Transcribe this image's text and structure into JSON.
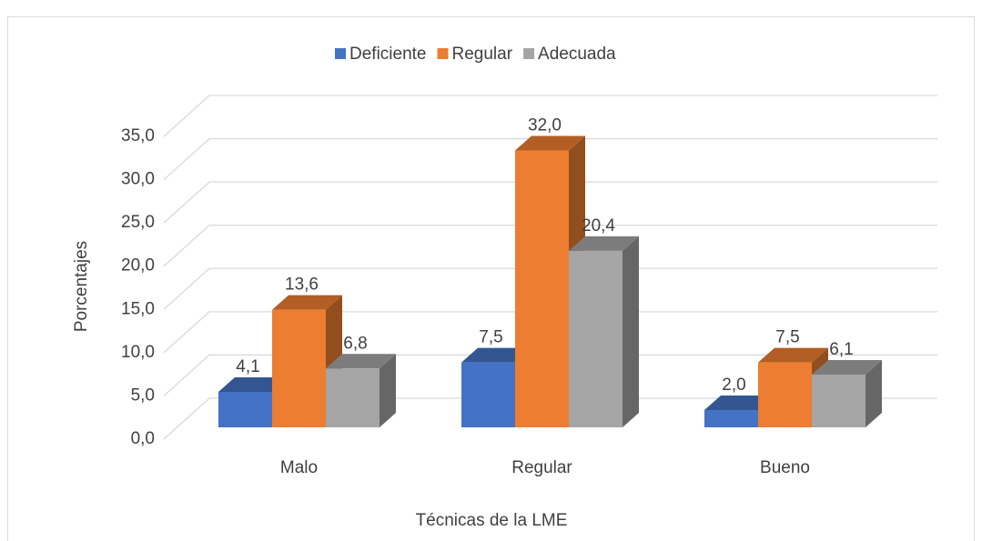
{
  "chart_data": {
    "type": "bar3d",
    "categories": [
      "Malo",
      "Regular",
      "Bueno"
    ],
    "series": [
      {
        "name": "Deficiente",
        "color": "#4472c4",
        "values": [
          4.1,
          7.5,
          2.0
        ],
        "value_labels": [
          "4,1",
          "7,5",
          "2,0"
        ]
      },
      {
        "name": "Regular",
        "color": "#ed7d31",
        "values": [
          13.6,
          32.0,
          7.5
        ],
        "value_labels": [
          "13,6",
          "32,0",
          "7,5"
        ]
      },
      {
        "name": "Adecuada",
        "color": "#a5a5a5",
        "values": [
          6.8,
          20.4,
          6.1
        ],
        "value_labels": [
          "6,8",
          "20,4",
          "6,1"
        ]
      }
    ],
    "xlabel": "Técnicas de la LME",
    "ylabel": "Porcentajes",
    "ylim": [
      0,
      35
    ],
    "yticks": [
      {
        "value": 0,
        "label": "0,0"
      },
      {
        "value": 5,
        "label": "5,0"
      },
      {
        "value": 10,
        "label": "10,0"
      },
      {
        "value": 15,
        "label": "15,0"
      },
      {
        "value": 20,
        "label": "20,0"
      },
      {
        "value": 25,
        "label": "25,0"
      },
      {
        "value": 30,
        "label": "30,0"
      },
      {
        "value": 35,
        "label": "35,0"
      }
    ],
    "grid": true,
    "legend": "top"
  }
}
